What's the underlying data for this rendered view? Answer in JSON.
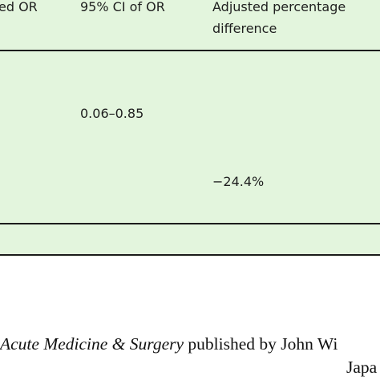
{
  "table": {
    "header": {
      "col_or": "ed OR",
      "col_ci": "95% CI of OR",
      "col_adjusted_line1": "Adjusted percentage",
      "col_adjusted_line2": "difference"
    },
    "rows": [
      {
        "ci": "0.06–0.85"
      },
      {
        "adjusted": "−24.4%"
      }
    ]
  },
  "footer": {
    "journal": "Acute Medicine & Surgery",
    "publisher_text": " published by John Wi",
    "line2": "Japa"
  },
  "colors": {
    "table_background": "#e3f5dd",
    "rule": "#1c1c1c",
    "text": "#1a1a1a"
  }
}
